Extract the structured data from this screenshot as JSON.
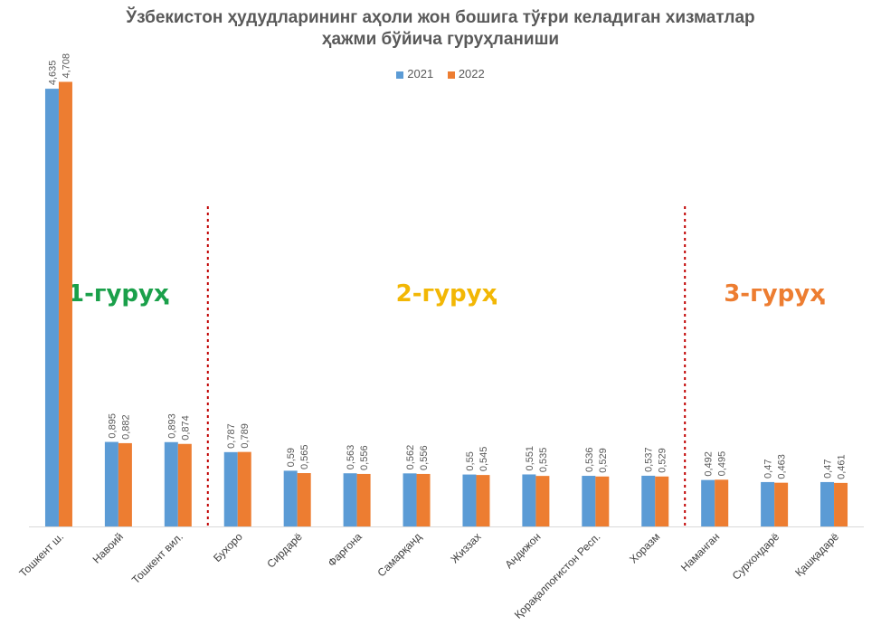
{
  "chart_data": {
    "type": "bar",
    "title_line1": "Ўзбекистон ҳудудларининг аҳоли жон бошига тўғри келадиган хизматлар",
    "title_line2": "ҳажми бўйича гуруҳланиши",
    "xlabel": "",
    "ylabel": "",
    "ylim": [
      0,
      5.0
    ],
    "legend_position": "top-center",
    "categories": [
      "Тошкент ш.",
      "Навоий",
      "Тошкент вил.",
      "Бухоро",
      "Сирдарё",
      "Фарғона",
      "Самарқанд",
      "Жиззах",
      "Андижон",
      "Қорақалпоғистон Респ.",
      "Хоразм",
      "Наманган",
      "Сурхондарё",
      "Қашқадарё"
    ],
    "series": [
      {
        "name": "2021",
        "color": "#5b9bd5",
        "values": [
          4.635,
          0.895,
          0.893,
          0.787,
          0.59,
          0.563,
          0.562,
          0.55,
          0.551,
          0.536,
          0.537,
          0.492,
          0.47,
          0.47
        ],
        "labels": [
          "4,635",
          "0,895",
          "0,893",
          "0,787",
          "0,59",
          "0,563",
          "0,562",
          "0,55",
          "0,551",
          "0,536",
          "0,537",
          "0,492",
          "0,47",
          "0,47"
        ]
      },
      {
        "name": "2022",
        "color": "#ed7d31",
        "values": [
          4.708,
          0.882,
          0.874,
          0.789,
          0.565,
          0.556,
          0.556,
          0.545,
          0.535,
          0.529,
          0.529,
          0.495,
          0.463,
          0.461
        ],
        "labels": [
          "4,708",
          "0,882",
          "0,874",
          "0,789",
          "0,565",
          "0,556",
          "0,556",
          "0,545",
          "0,535",
          "0,529",
          "0,529",
          "0,495",
          "0,463",
          "0,461"
        ]
      }
    ],
    "groups": [
      {
        "label": "1-гуруҳ",
        "color": "#1aa04a",
        "first": 0,
        "last": 2
      },
      {
        "label": "2-гуруҳ",
        "color": "#f2b705",
        "first": 3,
        "last": 10
      },
      {
        "label": "3-гуруҳ",
        "color": "#ed7d31",
        "first": 11,
        "last": 13
      }
    ],
    "dividers_after": [
      2,
      10
    ],
    "divider_color": "#c00000"
  }
}
